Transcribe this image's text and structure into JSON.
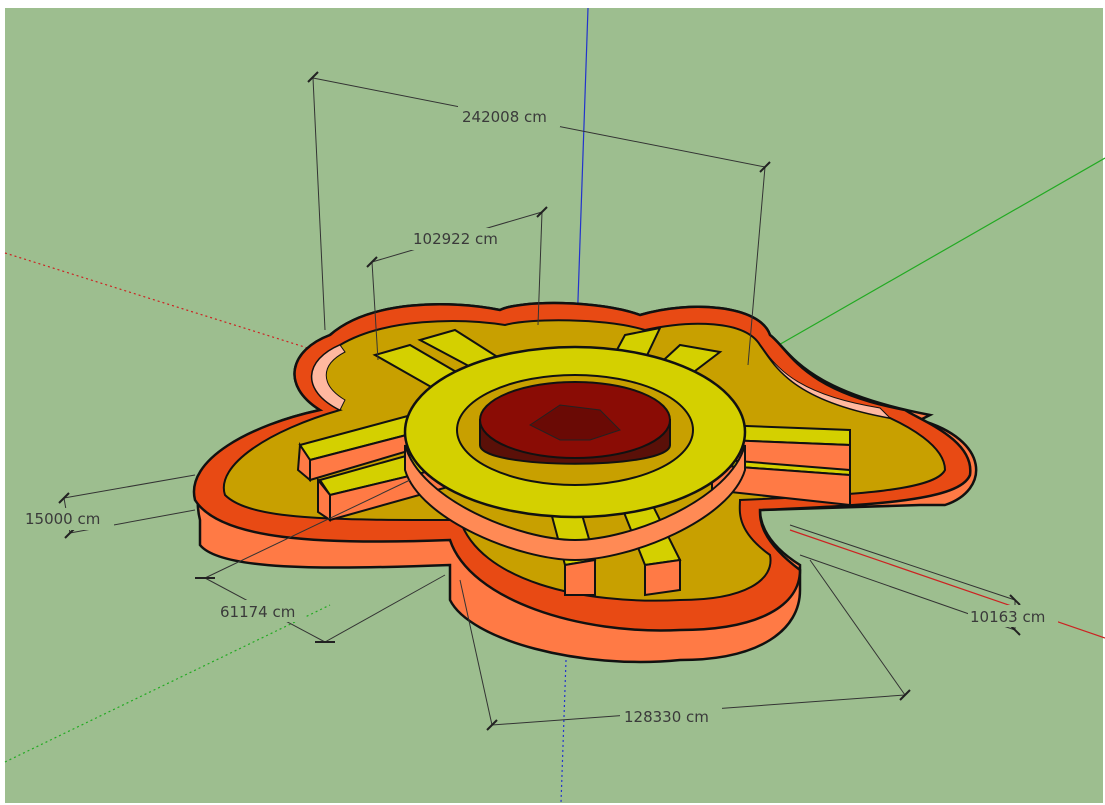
{
  "viewport": {
    "background_color": "#9dbe8f",
    "model_colors": {
      "outer_wall": "#ff7a45",
      "outer_wall_top": "#e84a14",
      "floor": "#c8a000",
      "inner_ring": "#d4d000",
      "center_cylinder": "#5a1008",
      "edge": "#111111"
    },
    "axes": {
      "red": "#cc2222",
      "green": "#22aa22",
      "blue": "#2233cc"
    }
  },
  "dimensions": {
    "overall_width": "242008 cm",
    "ring_width": "102922 cm",
    "wall_height": "15000 cm",
    "petal_offset": "61174 cm",
    "wall_thickness": "10163 cm",
    "petal_width": "128330 cm"
  }
}
